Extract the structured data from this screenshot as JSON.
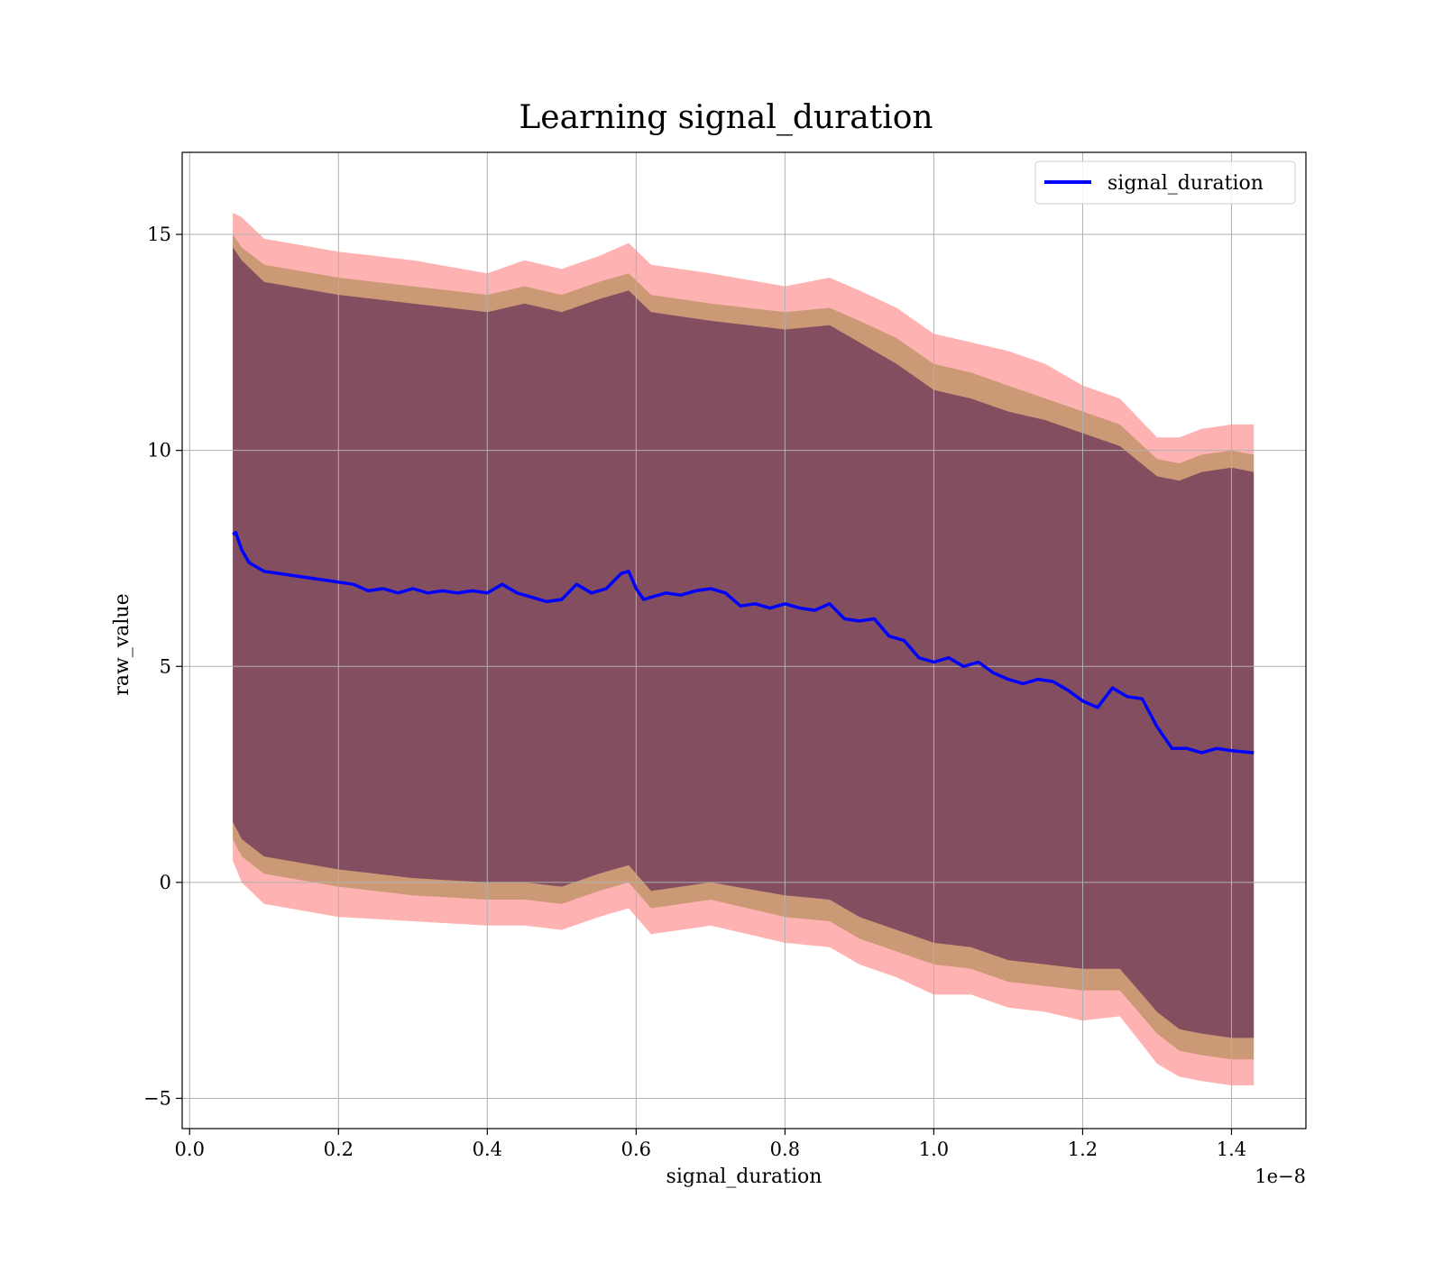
{
  "chart_data": {
    "type": "line",
    "title": "Learning signal_duration",
    "xlabel": "signal_duration",
    "ylabel": "raw_value",
    "x_offset_label": "1e−8",
    "xlim": [
      -0.01,
      1.5
    ],
    "ylim": [
      -5.7,
      16.9
    ],
    "x_ticks": [
      0.0,
      0.2,
      0.4,
      0.6,
      0.8,
      1.0,
      1.2,
      1.4
    ],
    "x_tick_labels": [
      "0.0",
      "0.2",
      "0.4",
      "0.6",
      "0.8",
      "1.0",
      "1.2",
      "1.4"
    ],
    "y_ticks": [
      -5,
      0,
      5,
      10,
      15
    ],
    "y_tick_labels": [
      "−5",
      "0",
      "5",
      "10",
      "15"
    ],
    "grid": true,
    "legend": {
      "position": "top-right",
      "entries": [
        "signal_duration"
      ]
    },
    "colors": {
      "line": "#0000ff",
      "band_outer": "#ff0000",
      "band_middle": "#8c7a2a",
      "band_inner": "#4a1050",
      "grid": "#b0b0b0"
    },
    "series": [
      {
        "name": "signal_duration",
        "x": [
          0.058,
          0.062,
          0.066,
          0.07,
          0.075,
          0.08,
          0.09,
          0.1,
          0.12,
          0.14,
          0.16,
          0.18,
          0.2,
          0.22,
          0.24,
          0.26,
          0.28,
          0.3,
          0.32,
          0.34,
          0.36,
          0.38,
          0.4,
          0.42,
          0.44,
          0.46,
          0.48,
          0.5,
          0.52,
          0.54,
          0.56,
          0.58,
          0.59,
          0.6,
          0.61,
          0.62,
          0.64,
          0.66,
          0.68,
          0.7,
          0.72,
          0.74,
          0.76,
          0.78,
          0.8,
          0.82,
          0.84,
          0.86,
          0.88,
          0.9,
          0.92,
          0.94,
          0.96,
          0.98,
          1.0,
          1.02,
          1.04,
          1.06,
          1.08,
          1.1,
          1.12,
          1.14,
          1.16,
          1.18,
          1.2,
          1.22,
          1.24,
          1.26,
          1.28,
          1.3,
          1.32,
          1.34,
          1.36,
          1.38,
          1.4,
          1.43
        ],
        "y": [
          8.05,
          8.1,
          7.9,
          7.7,
          7.55,
          7.4,
          7.3,
          7.2,
          7.15,
          7.1,
          7.05,
          7.0,
          6.95,
          6.9,
          6.75,
          6.8,
          6.7,
          6.8,
          6.7,
          6.75,
          6.7,
          6.75,
          6.7,
          6.9,
          6.7,
          6.6,
          6.5,
          6.55,
          6.9,
          6.7,
          6.8,
          7.15,
          7.2,
          6.8,
          6.55,
          6.6,
          6.7,
          6.65,
          6.75,
          6.8,
          6.7,
          6.4,
          6.45,
          6.35,
          6.45,
          6.35,
          6.3,
          6.45,
          6.1,
          6.05,
          6.1,
          5.7,
          5.6,
          5.2,
          5.1,
          5.2,
          5.0,
          5.1,
          4.85,
          4.7,
          4.6,
          4.7,
          4.65,
          4.45,
          4.2,
          4.05,
          4.5,
          4.3,
          4.25,
          3.6,
          3.1,
          3.1,
          3.0,
          3.1,
          3.05,
          3.0
        ]
      }
    ],
    "band_x": [
      0.058,
      0.07,
      0.1,
      0.2,
      0.3,
      0.4,
      0.45,
      0.5,
      0.55,
      0.59,
      0.62,
      0.7,
      0.8,
      0.86,
      0.9,
      0.95,
      1.0,
      1.05,
      1.1,
      1.15,
      1.2,
      1.25,
      1.3,
      1.33,
      1.36,
      1.4,
      1.43
    ],
    "bands": [
      {
        "upper": [
          15.5,
          15.4,
          14.9,
          14.6,
          14.4,
          14.1,
          14.4,
          14.2,
          14.5,
          14.8,
          14.3,
          14.1,
          13.8,
          14.0,
          13.7,
          13.3,
          12.7,
          12.5,
          12.3,
          12.0,
          11.5,
          11.2,
          10.3,
          10.3,
          10.5,
          10.6,
          10.6
        ],
        "lower": [
          0.5,
          0.0,
          -0.5,
          -0.8,
          -0.9,
          -1.0,
          -1.0,
          -1.1,
          -0.8,
          -0.6,
          -1.2,
          -1.0,
          -1.4,
          -1.5,
          -1.9,
          -2.2,
          -2.6,
          -2.6,
          -2.9,
          -3.0,
          -3.2,
          -3.1,
          -4.2,
          -4.5,
          -4.6,
          -4.7,
          -4.7
        ]
      },
      {
        "upper": [
          15.0,
          14.7,
          14.3,
          14.0,
          13.8,
          13.6,
          13.8,
          13.6,
          13.9,
          14.1,
          13.6,
          13.4,
          13.2,
          13.3,
          13.0,
          12.6,
          12.0,
          11.8,
          11.5,
          11.2,
          10.9,
          10.6,
          9.8,
          9.7,
          9.9,
          10.0,
          9.9
        ],
        "lower": [
          1.0,
          0.6,
          0.2,
          -0.1,
          -0.3,
          -0.4,
          -0.4,
          -0.5,
          -0.2,
          0.0,
          -0.6,
          -0.4,
          -0.8,
          -0.9,
          -1.3,
          -1.6,
          -1.9,
          -2.0,
          -2.3,
          -2.4,
          -2.5,
          -2.5,
          -3.5,
          -3.9,
          -4.0,
          -4.1,
          -4.1
        ]
      },
      {
        "upper": [
          14.7,
          14.4,
          13.9,
          13.6,
          13.4,
          13.2,
          13.4,
          13.2,
          13.5,
          13.7,
          13.2,
          13.0,
          12.8,
          12.9,
          12.5,
          12.0,
          11.4,
          11.2,
          10.9,
          10.7,
          10.4,
          10.1,
          9.4,
          9.3,
          9.5,
          9.6,
          9.5
        ],
        "lower": [
          1.4,
          1.0,
          0.6,
          0.3,
          0.1,
          0.0,
          0.0,
          -0.1,
          0.2,
          0.4,
          -0.2,
          0.0,
          -0.3,
          -0.4,
          -0.8,
          -1.1,
          -1.4,
          -1.5,
          -1.8,
          -1.9,
          -2.0,
          -2.0,
          -3.0,
          -3.4,
          -3.5,
          -3.6,
          -3.6
        ]
      }
    ]
  }
}
